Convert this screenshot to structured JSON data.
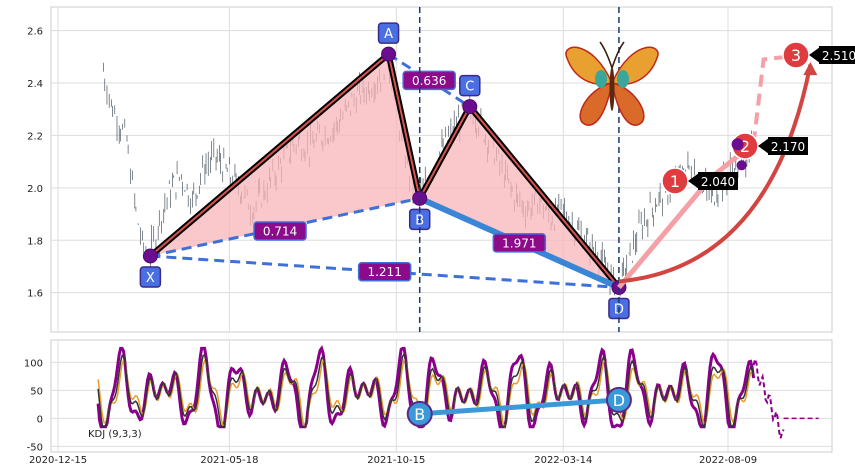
{
  "chart_data": [
    {
      "type": "candlestick",
      "name_on_chart": "",
      "x_ticks": [
        "2020-12-15",
        "2021-05-18",
        "2021-10-15",
        "2022-03-14",
        "2022-08-09"
      ],
      "y_ticks": [
        "1.6",
        "1.8",
        "2.0",
        "2.2",
        "2.4",
        "2.6"
      ],
      "ylim": [
        1.45,
        2.69
      ],
      "grid": true,
      "price_series": {
        "description": "daily price bars (approximate closes)",
        "points": [
          [
            "2021-01-25",
            2.45
          ],
          [
            "2021-02-01",
            2.32
          ],
          [
            "2021-02-08",
            2.25
          ],
          [
            "2021-02-15",
            2.18
          ],
          [
            "2021-02-22",
            1.95
          ],
          [
            "2021-03-01",
            1.78
          ],
          [
            "2021-03-08",
            1.74
          ],
          [
            "2021-03-15",
            1.86
          ],
          [
            "2021-03-25",
            1.98
          ],
          [
            "2021-04-05",
            2.05
          ],
          [
            "2021-04-15",
            1.95
          ],
          [
            "2021-04-26",
            2.08
          ],
          [
            "2021-05-06",
            2.12
          ],
          [
            "2021-05-18",
            2.05
          ],
          [
            "2021-05-28",
            2.0
          ],
          [
            "2021-06-08",
            1.92
          ],
          [
            "2021-06-18",
            1.98
          ],
          [
            "2021-06-28",
            2.05
          ],
          [
            "2021-07-08",
            2.12
          ],
          [
            "2021-07-19",
            2.18
          ],
          [
            "2021-07-29",
            2.15
          ],
          [
            "2021-08-09",
            2.2
          ],
          [
            "2021-08-19",
            2.22
          ],
          [
            "2021-08-30",
            2.28
          ],
          [
            "2021-09-09",
            2.35
          ],
          [
            "2021-09-20",
            2.38
          ],
          [
            "2021-09-30",
            2.42
          ],
          [
            "2021-10-08",
            2.5
          ],
          [
            "2021-10-15",
            2.32
          ],
          [
            "2021-10-22",
            2.15
          ],
          [
            "2021-10-29",
            2.02
          ],
          [
            "2021-11-05",
            1.96
          ],
          [
            "2021-11-12",
            2.02
          ],
          [
            "2021-11-19",
            2.1
          ],
          [
            "2021-11-30",
            2.18
          ],
          [
            "2021-12-10",
            2.25
          ],
          [
            "2021-12-20",
            2.31
          ],
          [
            "2021-12-30",
            2.24
          ],
          [
            "2022-01-10",
            2.15
          ],
          [
            "2022-01-20",
            2.05
          ],
          [
            "2022-01-31",
            1.96
          ],
          [
            "2022-02-10",
            1.92
          ],
          [
            "2022-02-21",
            1.95
          ],
          [
            "2022-03-03",
            1.88
          ],
          [
            "2022-03-14",
            1.92
          ],
          [
            "2022-03-24",
            1.85
          ],
          [
            "2022-04-04",
            1.8
          ],
          [
            "2022-04-14",
            1.75
          ],
          [
            "2022-04-25",
            1.66
          ],
          [
            "2022-05-03",
            1.62
          ],
          [
            "2022-05-12",
            1.72
          ],
          [
            "2022-05-23",
            1.85
          ],
          [
            "2022-06-02",
            1.92
          ],
          [
            "2022-06-13",
            1.98
          ],
          [
            "2022-06-23",
            2.02
          ],
          [
            "2022-07-04",
            2.08
          ],
          [
            "2022-07-14",
            2.05
          ],
          [
            "2022-07-25",
            1.96
          ],
          [
            "2022-08-04",
            2.02
          ],
          [
            "2022-08-15",
            2.08
          ],
          [
            "2022-08-25",
            2.12
          ],
          [
            "2022-09-01",
            2.15
          ]
        ]
      },
      "harmonic_points": [
        {
          "label": "X",
          "date": "2021-03-08",
          "price": 1.74
        },
        {
          "label": "A",
          "date": "2021-10-08",
          "price": 2.51
        },
        {
          "label": "B",
          "date": "2021-11-05",
          "price": 1.96
        },
        {
          "label": "C",
          "date": "2021-12-20",
          "price": 2.31
        },
        {
          "label": "D",
          "date": "2022-05-03",
          "price": 1.62
        }
      ],
      "ratios": [
        {
          "text": "0.636",
          "between": [
            "A",
            "C"
          ]
        },
        {
          "text": "0.714",
          "between": [
            "X",
            "B"
          ]
        },
        {
          "text": "1.211",
          "between": [
            "X",
            "D"
          ]
        },
        {
          "text": "1.971",
          "between": [
            "B",
            "D"
          ]
        }
      ],
      "vertical_markers": [
        "2021-11-05",
        "2022-05-03"
      ],
      "targets": [
        {
          "label": "1",
          "value": "2.040",
          "date": "2022-07-25",
          "price": 2.04
        },
        {
          "label": "2",
          "value": "2.170",
          "date": "2022-09-01",
          "price": 2.17
        },
        {
          "label": "3",
          "value": "2.510",
          "date": "2022-10-22",
          "price": 2.51
        }
      ],
      "projection_peak": {
        "date": "2022-09-10",
        "price": 2.49
      },
      "colors": {
        "triangle_fill": "#f8b6ba",
        "leg_line": "#000000",
        "leg_accent": "#d9534f",
        "dashed": "#3f6fd8",
        "bd_line": "#3a86d6",
        "point": "#6a0d91",
        "label_box": "#4a6fe3",
        "ratio_box": "#8b0b8b",
        "target_circle": "#e03c40",
        "target_line": "#f4a0a6",
        "arrow": "#d24540",
        "vline": "#1a3a6b"
      }
    },
    {
      "type": "line",
      "name_on_chart": "KDJ (9,3,3)",
      "y_ticks": [
        "-50",
        "0",
        "50",
        "100"
      ],
      "ylim": [
        -60,
        140
      ],
      "grid": true,
      "markers": [
        {
          "label": "B",
          "date": "2021-11-05",
          "value": 8
        },
        {
          "label": "D",
          "date": "2022-05-03",
          "value": 33
        }
      ],
      "colors": {
        "k": "#333333",
        "d": "#e89a2c",
        "j": "#8b008b",
        "marker": "#3a9ad9"
      }
    }
  ]
}
